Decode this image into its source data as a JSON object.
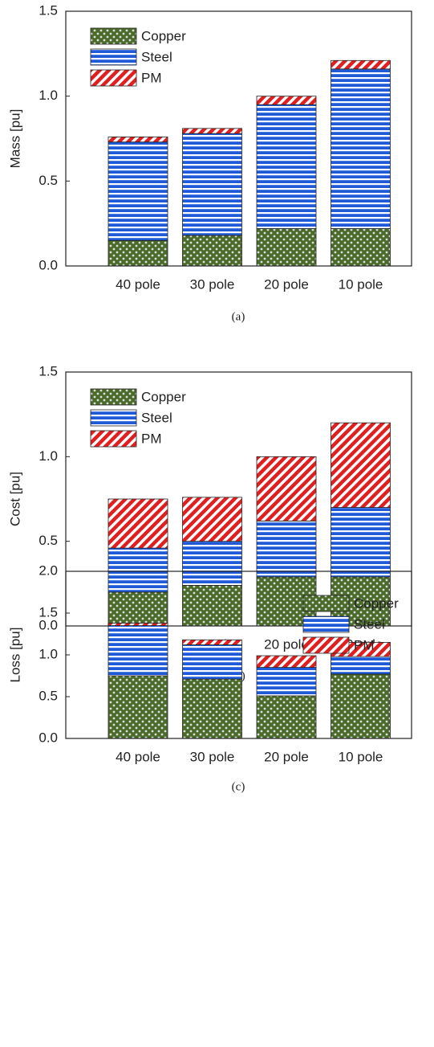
{
  "chart_data": [
    {
      "type": "bar",
      "stacked": true,
      "ylabel": "Mass  [pu]",
      "caption": "(a)",
      "legend": "upper left",
      "categories": [
        "40 pole",
        "30 pole",
        "20 pole",
        "10 pole"
      ],
      "series": [
        {
          "name": "Copper",
          "color": "#4b6b2b",
          "hatch": "dots",
          "values": [
            0.15,
            0.18,
            0.22,
            0.22
          ]
        },
        {
          "name": "Steel",
          "color": "#1f5bd8",
          "hatch": "hlines",
          "values": [
            0.58,
            0.6,
            0.73,
            0.94
          ]
        },
        {
          "name": "PM",
          "color": "#e02020",
          "hatch": "diagonal",
          "values": [
            0.03,
            0.03,
            0.05,
            0.05
          ]
        }
      ],
      "ylim": [
        0,
        1.5
      ],
      "yticks": [
        {
          "value": 0,
          "label": "0.0"
        },
        0.5,
        {
          "value": 1,
          "label": "1.0"
        },
        1.5
      ]
    },
    {
      "type": "bar",
      "stacked": true,
      "ylabel": "Cost  [pu]",
      "caption": "(b)",
      "legend": "upper left",
      "categories": [
        "40 pole",
        "30 pole",
        "20 pole",
        "10 pole"
      ],
      "series": [
        {
          "name": "Copper",
          "color": "#4b6b2b",
          "hatch": "dots",
          "values": [
            0.2,
            0.24,
            0.29,
            0.29
          ]
        },
        {
          "name": "Steel",
          "color": "#1f5bd8",
          "hatch": "hlines",
          "values": [
            0.26,
            0.26,
            0.33,
            0.41
          ]
        },
        {
          "name": "PM",
          "color": "#e02020",
          "hatch": "diagonal",
          "values": [
            0.29,
            0.26,
            0.38,
            0.5
          ]
        }
      ],
      "ylim": [
        0,
        1.5
      ],
      "yticks": [
        {
          "value": 0,
          "label": "0.0"
        },
        0.5,
        {
          "value": 1,
          "label": "1.0"
        },
        1.5
      ]
    },
    {
      "type": "bar",
      "stacked": true,
      "ylabel": "Loss  [pu]",
      "caption": "(c)",
      "legend": "upper right",
      "categories": [
        "40 pole",
        "30 pole",
        "20 pole",
        "10 pole"
      ],
      "series": [
        {
          "name": "Copper",
          "color": "#4b6b2b",
          "hatch": "dots",
          "values": [
            0.75,
            0.71,
            0.51,
            0.77
          ]
        },
        {
          "name": "Steel",
          "color": "#1f5bd8",
          "hatch": "hlines",
          "values": [
            0.6,
            0.41,
            0.34,
            0.21
          ]
        },
        {
          "name": "PM",
          "color": "#e02020",
          "hatch": "diagonal",
          "values": [
            0.03,
            0.06,
            0.14,
            0.17
          ]
        }
      ],
      "ylim": [
        0,
        2
      ],
      "yticks": [
        {
          "value": 0,
          "label": "0.0"
        },
        0.5,
        {
          "value": 1,
          "label": "1.0"
        },
        1.5,
        {
          "value": 2,
          "label": "2.0"
        }
      ]
    }
  ]
}
